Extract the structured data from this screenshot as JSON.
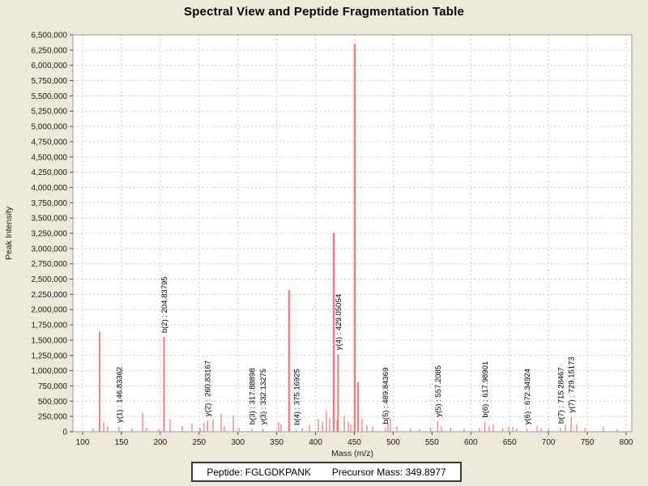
{
  "title": "Spectral View and Peptide Fragmentation Table",
  "footer": {
    "peptide": "Peptide: FGLGDKPANK",
    "precursor": "Precursor Mass: 349.8977"
  },
  "chart_data": {
    "type": "bar",
    "title": "Spectral View and Peptide Fragmentation Table",
    "xlabel": "Mass (m/z)",
    "ylabel": "Peak Intensity",
    "xlim": [
      87,
      807
    ],
    "ylim": [
      0,
      6500000
    ],
    "x_ticks": [
      100,
      150,
      200,
      250,
      300,
      350,
      400,
      450,
      500,
      550,
      600,
      650,
      700,
      750,
      800
    ],
    "y_tick_step": 250000,
    "grid": true,
    "legend": "none",
    "colors": {
      "background": "#ece9d8",
      "plot_background": "#ffffff",
      "gridline": "#c9c9c9",
      "frame": "#9a9a9a",
      "peak": "#f08080",
      "text": "#1a1a1a"
    },
    "peaks": [
      {
        "mz": 113.5,
        "intensity": 55000
      },
      {
        "mz": 121.9,
        "intensity": 1640000
      },
      {
        "mz": 127.1,
        "intensity": 150000
      },
      {
        "mz": 132.3,
        "intensity": 90000
      },
      {
        "mz": 146.83362,
        "intensity": 80000,
        "label": "y(1) : 146.83362"
      },
      {
        "mz": 163.6,
        "intensity": 55000
      },
      {
        "mz": 177.2,
        "intensity": 310000
      },
      {
        "mz": 182.4,
        "intensity": 70000
      },
      {
        "mz": 198.1,
        "intensity": 45000
      },
      {
        "mz": 204.83795,
        "intensity": 1550000,
        "label": "b(2) : 204.83795"
      },
      {
        "mz": 212.7,
        "intensity": 210000
      },
      {
        "mz": 228.3,
        "intensity": 95000
      },
      {
        "mz": 240.8,
        "intensity": 135000
      },
      {
        "mz": 251.3,
        "intensity": 65000
      },
      {
        "mz": 256.5,
        "intensity": 150000
      },
      {
        "mz": 260.83167,
        "intensity": 185000,
        "label": "y(2) : 260.83167"
      },
      {
        "mz": 268.0,
        "intensity": 210000
      },
      {
        "mz": 278.4,
        "intensity": 290000
      },
      {
        "mz": 282.6,
        "intensity": 95000
      },
      {
        "mz": 294.0,
        "intensity": 260000
      },
      {
        "mz": 301.3,
        "intensity": 60000
      },
      {
        "mz": 317.88898,
        "intensity": 50000,
        "label": "b(3) : 317.88898"
      },
      {
        "mz": 332.13275,
        "intensity": 50000,
        "label": "y(3) : 332.13275"
      },
      {
        "mz": 352.4,
        "intensity": 155000
      },
      {
        "mz": 355.6,
        "intensity": 130000
      },
      {
        "mz": 366.0,
        "intensity": 2320000
      },
      {
        "mz": 375.16925,
        "intensity": 40000,
        "label": "b(4) : 375.16925"
      },
      {
        "mz": 383.0,
        "intensity": 60000
      },
      {
        "mz": 392.1,
        "intensity": 110000
      },
      {
        "mz": 403.6,
        "intensity": 215000
      },
      {
        "mz": 409.0,
        "intensity": 160000
      },
      {
        "mz": 414.0,
        "intensity": 340000
      },
      {
        "mz": 418.2,
        "intensity": 220000
      },
      {
        "mz": 423.4,
        "intensity": 3260000
      },
      {
        "mz": 427.6,
        "intensity": 195000
      },
      {
        "mz": 429.05054,
        "intensity": 1270000,
        "label": "y(4) : 429.05054"
      },
      {
        "mz": 437.0,
        "intensity": 260000
      },
      {
        "mz": 442.2,
        "intensity": 165000
      },
      {
        "mz": 445.3,
        "intensity": 120000
      },
      {
        "mz": 450.5,
        "intensity": 6350000
      },
      {
        "mz": 454.7,
        "intensity": 810000
      },
      {
        "mz": 459.9,
        "intensity": 215000
      },
      {
        "mz": 466.2,
        "intensity": 110000
      },
      {
        "mz": 473.5,
        "intensity": 85000
      },
      {
        "mz": 489.84369,
        "intensity": 60000,
        "label": "b(5) : 489.84369"
      },
      {
        "mz": 493.3,
        "intensity": 140000
      },
      {
        "mz": 496.4,
        "intensity": 215000
      },
      {
        "mz": 504.8,
        "intensity": 95000
      },
      {
        "mz": 522.5,
        "intensity": 60000
      },
      {
        "mz": 534.0,
        "intensity": 45000
      },
      {
        "mz": 548.0,
        "intensity": 70000
      },
      {
        "mz": 557.2085,
        "intensity": 175000,
        "label": "y(5) : 557.2085"
      },
      {
        "mz": 562.2,
        "intensity": 90000
      },
      {
        "mz": 574.0,
        "intensity": 65000
      },
      {
        "mz": 591.4,
        "intensity": 50000
      },
      {
        "mz": 611.2,
        "intensity": 60000
      },
      {
        "mz": 617.98901,
        "intensity": 165000,
        "label": "b(6) : 617.98901"
      },
      {
        "mz": 623.8,
        "intensity": 90000
      },
      {
        "mz": 628.9,
        "intensity": 120000
      },
      {
        "mz": 641.0,
        "intensity": 60000
      },
      {
        "mz": 648.8,
        "intensity": 80000
      },
      {
        "mz": 654.0,
        "intensity": 85000
      },
      {
        "mz": 659.2,
        "intensity": 55000
      },
      {
        "mz": 672.34924,
        "intensity": 50000,
        "label": "y(6) : 672.34924"
      },
      {
        "mz": 685.3,
        "intensity": 95000
      },
      {
        "mz": 690.5,
        "intensity": 60000
      },
      {
        "mz": 700.0,
        "intensity": 55000
      },
      {
        "mz": 715.28467,
        "intensity": 65000,
        "label": "b(7) : 715.28467"
      },
      {
        "mz": 721.8,
        "intensity": 115000
      },
      {
        "mz": 729.15173,
        "intensity": 245000,
        "label": "y(7) : 729.15173"
      },
      {
        "mz": 736.4,
        "intensity": 120000
      },
      {
        "mz": 747.0,
        "intensity": 60000
      },
      {
        "mz": 770.8,
        "intensity": 90000
      },
      {
        "mz": 788.5,
        "intensity": 45000
      }
    ]
  }
}
